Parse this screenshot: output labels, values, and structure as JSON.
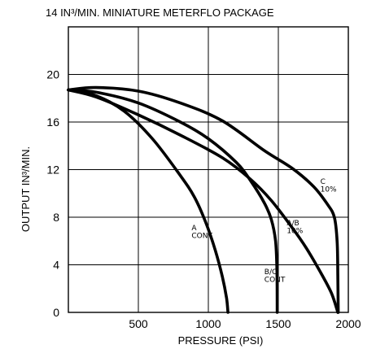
{
  "chart_data": {
    "type": "line",
    "title": "14 IN³/MIN. MINIATURE METERFLO PACKAGE",
    "xlabel": "PRESSURE (PSI)",
    "ylabel": "OUTPUT IN³/MIN.",
    "xlim": [
      0,
      2000
    ],
    "ylim": [
      0,
      24
    ],
    "xticks": [
      500,
      1000,
      1500,
      2000
    ],
    "xtick_labels": [
      "500",
      "1000",
      "1500",
      "2000"
    ],
    "yticks": [
      0,
      4,
      8,
      12,
      16,
      20
    ],
    "ytick_labels": [
      "0",
      "4",
      "8",
      "12",
      "16",
      "20"
    ],
    "grid": true,
    "series": [
      {
        "name": "C 10%",
        "label_lines": [
          "C",
          "10%"
        ],
        "label_at": [
          1800,
          10.8
        ],
        "points": [
          [
            0,
            18.7
          ],
          [
            200,
            18.9
          ],
          [
            500,
            18.6
          ],
          [
            800,
            17.6
          ],
          [
            1100,
            16.1
          ],
          [
            1400,
            13.6
          ],
          [
            1600,
            12.1
          ],
          [
            1750,
            10.6
          ],
          [
            1850,
            9.1
          ],
          [
            1900,
            8.0
          ],
          [
            1920,
            6.0
          ],
          [
            1925,
            3.0
          ],
          [
            1928,
            0
          ]
        ]
      },
      {
        "name": "A/B 10%",
        "label_lines": [
          "A/B",
          "10%"
        ],
        "label_at": [
          1560,
          7.3
        ],
        "points": [
          [
            0,
            18.7
          ],
          [
            200,
            18.1
          ],
          [
            500,
            16.6
          ],
          [
            800,
            14.9
          ],
          [
            1100,
            13.0
          ],
          [
            1300,
            11.2
          ],
          [
            1450,
            9.4
          ],
          [
            1600,
            7.1
          ],
          [
            1700,
            5.4
          ],
          [
            1800,
            3.4
          ],
          [
            1880,
            1.6
          ],
          [
            1925,
            0
          ]
        ]
      },
      {
        "name": "B/C CONT",
        "label_lines": [
          "B/C",
          "CONT"
        ],
        "label_at": [
          1400,
          3.2
        ],
        "points": [
          [
            0,
            18.7
          ],
          [
            200,
            18.5
          ],
          [
            500,
            17.6
          ],
          [
            800,
            16.0
          ],
          [
            1000,
            14.6
          ],
          [
            1200,
            12.6
          ],
          [
            1300,
            11.1
          ],
          [
            1400,
            9.2
          ],
          [
            1450,
            7.8
          ],
          [
            1480,
            6.0
          ],
          [
            1490,
            3.5
          ],
          [
            1492,
            0
          ]
        ]
      },
      {
        "name": "A CONT",
        "label_lines": [
          "A",
          "CONT"
        ],
        "label_at": [
          880,
          6.9
        ],
        "points": [
          [
            0,
            18.7
          ],
          [
            200,
            18.2
          ],
          [
            400,
            16.9
          ],
          [
            600,
            14.6
          ],
          [
            800,
            11.5
          ],
          [
            900,
            9.7
          ],
          [
            980,
            7.6
          ],
          [
            1050,
            5.2
          ],
          [
            1100,
            3.0
          ],
          [
            1130,
            1.2
          ],
          [
            1140,
            0
          ]
        ]
      }
    ]
  }
}
